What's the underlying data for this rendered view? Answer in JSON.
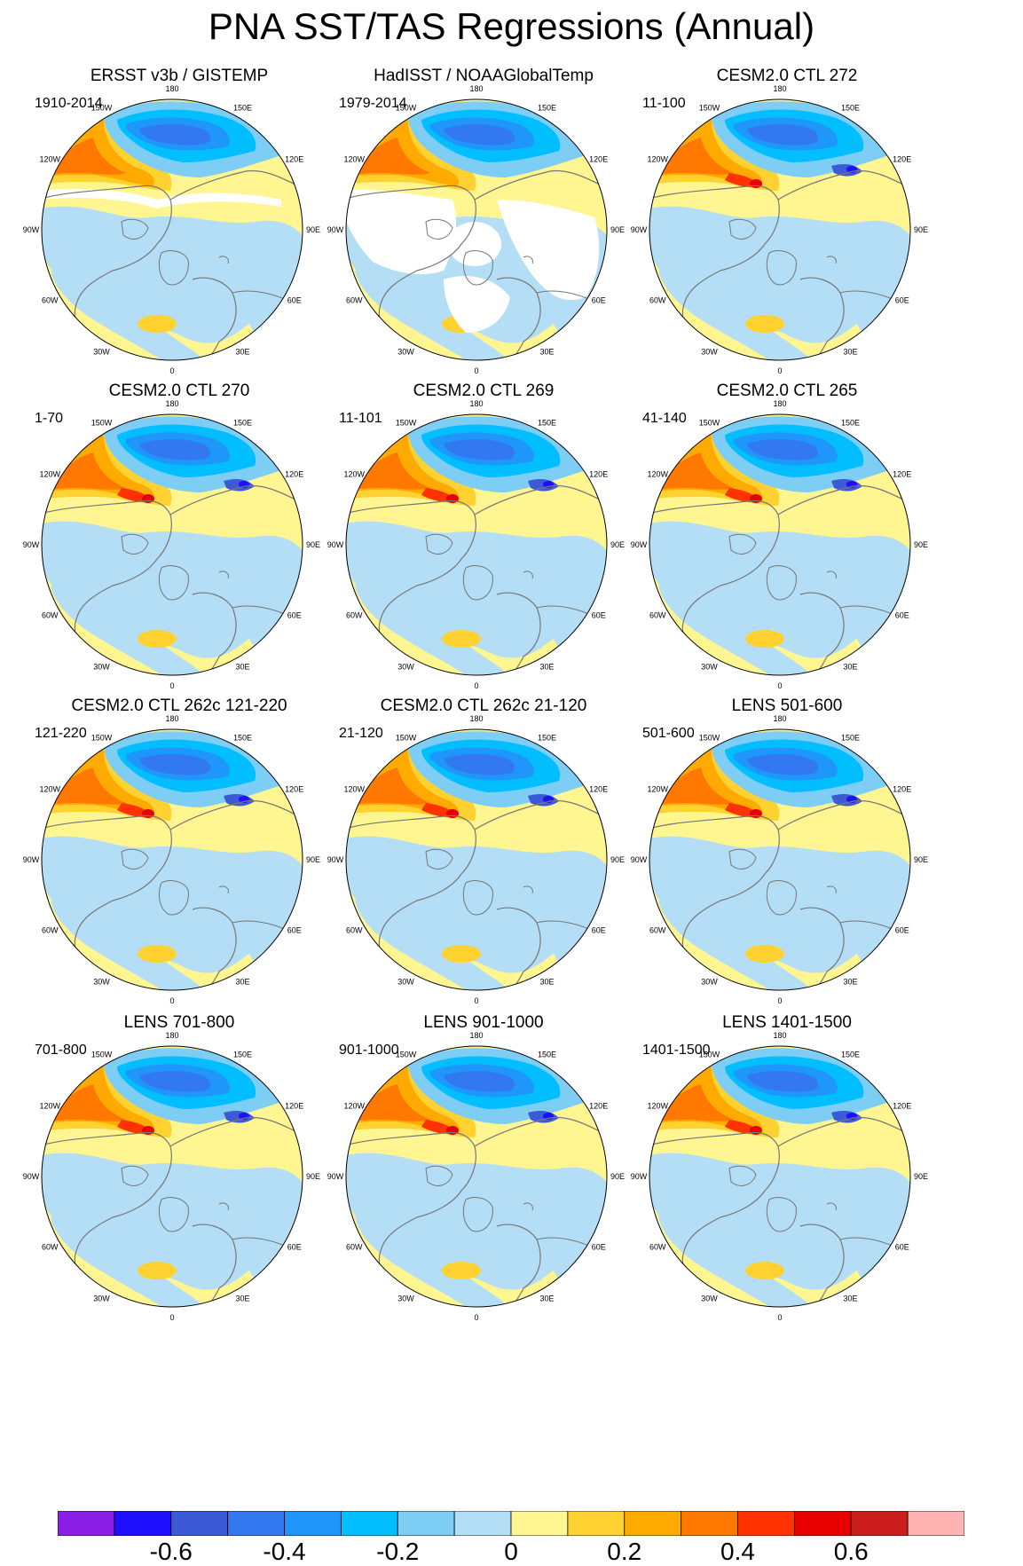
{
  "title": "PNA SST/TAS Regressions (Annual)",
  "panels": [
    {
      "title": "ERSST v3b / GISTEMP",
      "years": "1910-2014",
      "obs": true
    },
    {
      "title": "HadISST / NOAAGlobalTemp",
      "years": "1979-2014",
      "obs": true
    },
    {
      "title": "CESM2.0 CTL 272",
      "years": "11-100",
      "obs": false
    },
    {
      "title": "CESM2.0 CTL 270",
      "years": "1-70",
      "obs": false
    },
    {
      "title": "CESM2.0 CTL 269",
      "years": "11-101",
      "obs": false
    },
    {
      "title": "CESM2.0 CTL 265",
      "years": "41-140",
      "obs": false
    },
    {
      "title": "CESM2.0 CTL 262c 121-220",
      "years": "121-220",
      "obs": false
    },
    {
      "title": "CESM2.0 CTL 262c 21-120",
      "years": "21-120",
      "obs": false
    },
    {
      "title": "LENS 501-600",
      "years": "501-600",
      "obs": false
    },
    {
      "title": "LENS 701-800",
      "years": "701-800",
      "obs": false
    },
    {
      "title": "LENS 901-1000",
      "years": "901-1000",
      "obs": false
    },
    {
      "title": "LENS 1401-1500",
      "years": "1401-1500",
      "obs": false
    }
  ],
  "longitude_labels": [
    {
      "text": "180",
      "lon": 180
    },
    {
      "text": "150E",
      "lon": 150
    },
    {
      "text": "120E",
      "lon": 120
    },
    {
      "text": "90E",
      "lon": 90
    },
    {
      "text": "60E",
      "lon": 60
    },
    {
      "text": "30E",
      "lon": 30
    },
    {
      "text": "0",
      "lon": 0
    },
    {
      "text": "30W",
      "lon": -30
    },
    {
      "text": "60W",
      "lon": -60
    },
    {
      "text": "90W",
      "lon": -90
    },
    {
      "text": "120W",
      "lon": -120
    },
    {
      "text": "150W",
      "lon": -150
    }
  ],
  "colorbar": {
    "colors": [
      "#8b1ee6",
      "#1e0fff",
      "#3c5ad7",
      "#3278f0",
      "#1e96fa",
      "#00beff",
      "#7dcdf5",
      "#b4def5",
      "#fff591",
      "#ffd232",
      "#ffaa00",
      "#ff7800",
      "#ff3200",
      "#e60000",
      "#cd1e1e",
      "#ffb4b4"
    ],
    "labels": [
      {
        "text": "-0.6",
        "value": -0.6
      },
      {
        "text": "-0.4",
        "value": -0.4
      },
      {
        "text": "-0.2",
        "value": -0.2
      },
      {
        "text": "0",
        "value": 0
      },
      {
        "text": "0.2",
        "value": 0.2
      },
      {
        "text": "0.4",
        "value": 0.4
      },
      {
        "text": "0.6",
        "value": 0.6
      }
    ],
    "min": -0.8,
    "max": 0.8
  }
}
